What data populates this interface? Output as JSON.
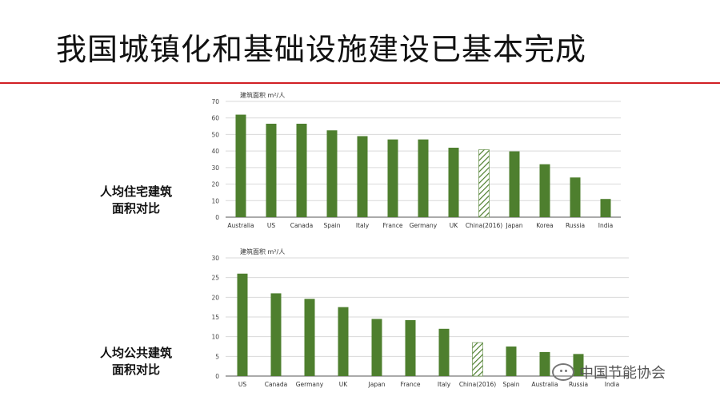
{
  "title": "我国城镇化和基础设施建设已基本完成",
  "labels": {
    "residential": [
      "人均住宅建筑",
      "面积对比"
    ],
    "public": [
      "人均公共建筑",
      "面积对比"
    ]
  },
  "watermark": "中国节能协会",
  "colors": {
    "bar": "#4e7f2e",
    "hatch": "#4e7f2e",
    "accent_rule": "#d11f24",
    "grid": "#d9d9d9"
  },
  "chart_data": [
    {
      "type": "bar",
      "ylabel": "建筑面积 m²/人",
      "ylim": [
        0,
        70
      ],
      "yticks": [
        0,
        10,
        20,
        30,
        40,
        50,
        60,
        70
      ],
      "grid": true,
      "categories": [
        "Australia",
        "US",
        "Canada",
        "Spain",
        "Italy",
        "France",
        "Germany",
        "UK",
        "China(2016)",
        "Japan",
        "Korea",
        "Russia",
        "India"
      ],
      "values": [
        62,
        56.5,
        56.5,
        52.5,
        49,
        47,
        47,
        42,
        40.8,
        39.8,
        32,
        24,
        11
      ],
      "highlight_index": 8
    },
    {
      "type": "bar",
      "ylabel": "建筑面积 m²/人",
      "ylim": [
        0,
        30
      ],
      "yticks": [
        0,
        5,
        10,
        15,
        20,
        25,
        30
      ],
      "grid": true,
      "categories": [
        "US",
        "Canada",
        "Germany",
        "UK",
        "Japan",
        "France",
        "Italy",
        "China(2016)",
        "Spain",
        "Australia",
        "Russia",
        "India"
      ],
      "values": [
        26,
        21,
        19.6,
        17.5,
        14.5,
        14.2,
        12,
        8.5,
        7.5,
        6.1,
        5.6,
        0
      ],
      "highlight_index": 7
    }
  ]
}
